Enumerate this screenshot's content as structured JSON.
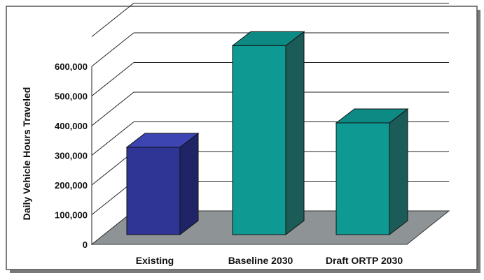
{
  "chart_data": {
    "type": "bar",
    "categories": [
      "Existing",
      "Baseline 2030",
      "Draft ORTP 2030"
    ],
    "values": [
      276000,
      597000,
      353000
    ],
    "ylabel": "Daily Vehicle Hours Traveled",
    "xlabel": "",
    "ylim": [
      0,
      700000
    ],
    "yticks": [
      0,
      100000,
      200000,
      300000,
      400000,
      500000,
      600000
    ],
    "ytick_labels": [
      "0",
      "100,000",
      "200,000",
      "300,000",
      "400,000",
      "500,000",
      "600,000"
    ],
    "grid": true,
    "legend": "none",
    "bar_colors": [
      "#2e3594",
      "#0e9a93",
      "#0e9a93"
    ],
    "floor_color": "#8e9496"
  }
}
